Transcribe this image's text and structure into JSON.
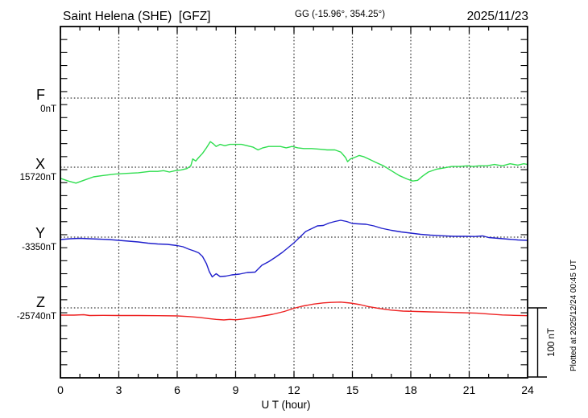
{
  "header": {
    "title": "Saint Helena (SHE)  [GFZ]",
    "coords": "GG (-15.96°, 354.25°)",
    "date": "2025/11/23"
  },
  "axis": {
    "xlabel": "U T (hour)",
    "x_ticks": [
      0,
      3,
      6,
      9,
      12,
      15,
      18,
      21,
      24
    ],
    "x_range": [
      0,
      24
    ]
  },
  "scale_bar": {
    "label": "100 nT",
    "span_nT": 100
  },
  "plotted_at": "Plotted at 2025/12/24 00:45 UT",
  "chart_data": {
    "type": "line",
    "title": "Saint Helena (SHE) [GFZ] magnetogram 2025/11/23",
    "xlabel": "U T (hour)",
    "x_range": [
      0,
      24
    ],
    "x_tick_step": 3,
    "grid": "dotted vertical lines every 3 h, dotted horizontal baseline per component",
    "legend_position": "left margin, one colored label per component",
    "y_units": "nT deviation from component baseline, 100 nT per division",
    "series": [
      {
        "name": "F",
        "baseline_label": "0nT",
        "color": "#FFA500",
        "points": []
      },
      {
        "name": "X",
        "baseline_label": "15720nT",
        "color": "#2FDE4F",
        "points": [
          [
            0,
            -16
          ],
          [
            0.4,
            -20
          ],
          [
            0.8,
            -23
          ],
          [
            1.2,
            -19
          ],
          [
            1.7,
            -14
          ],
          [
            2.2,
            -12
          ],
          [
            2.8,
            -10
          ],
          [
            3.4,
            -9
          ],
          [
            4,
            -8
          ],
          [
            4.6,
            -6
          ],
          [
            5,
            -6
          ],
          [
            5.3,
            -5
          ],
          [
            5.6,
            -7
          ],
          [
            5.9,
            -5
          ],
          [
            6.2,
            -4
          ],
          [
            6.5,
            -2
          ],
          [
            6.7,
            2
          ],
          [
            6.8,
            12
          ],
          [
            6.95,
            9
          ],
          [
            7.1,
            14
          ],
          [
            7.3,
            20
          ],
          [
            7.5,
            28
          ],
          [
            7.7,
            37
          ],
          [
            7.85,
            34
          ],
          [
            8,
            30
          ],
          [
            8.2,
            33
          ],
          [
            8.45,
            31
          ],
          [
            8.7,
            33
          ],
          [
            9,
            33
          ],
          [
            9.3,
            33
          ],
          [
            9.6,
            31
          ],
          [
            9.9,
            29
          ],
          [
            10.15,
            25
          ],
          [
            10.4,
            28
          ],
          [
            10.7,
            30
          ],
          [
            11,
            30
          ],
          [
            11.3,
            30
          ],
          [
            11.6,
            28
          ],
          [
            11.9,
            30
          ],
          [
            12.2,
            28
          ],
          [
            12.5,
            27
          ],
          [
            12.9,
            27
          ],
          [
            13.3,
            26
          ],
          [
            13.7,
            25
          ],
          [
            14.1,
            25
          ],
          [
            14.4,
            22
          ],
          [
            14.65,
            14
          ],
          [
            14.75,
            8
          ],
          [
            14.9,
            12
          ],
          [
            15.1,
            14
          ],
          [
            15.35,
            17
          ],
          [
            15.6,
            15
          ],
          [
            15.9,
            11
          ],
          [
            16.2,
            7
          ],
          [
            16.6,
            2
          ],
          [
            17,
            -5
          ],
          [
            17.4,
            -12
          ],
          [
            17.8,
            -17
          ],
          [
            18.1,
            -20
          ],
          [
            18.35,
            -19
          ],
          [
            18.6,
            -13
          ],
          [
            18.9,
            -7
          ],
          [
            19.3,
            -3
          ],
          [
            19.7,
            -1
          ],
          [
            20.1,
            1
          ],
          [
            20.5,
            1
          ],
          [
            20.9,
            2
          ],
          [
            21.2,
            1
          ],
          [
            21.5,
            2
          ],
          [
            21.9,
            2
          ],
          [
            22.3,
            4
          ],
          [
            22.7,
            2
          ],
          [
            23.1,
            5
          ],
          [
            23.5,
            3
          ],
          [
            23.8,
            5
          ],
          [
            24,
            4
          ]
        ]
      },
      {
        "name": "Y",
        "baseline_label": "-3350nT",
        "color": "#2020CC",
        "points": [
          [
            0,
            -3.5
          ],
          [
            0.5,
            -2.3
          ],
          [
            1,
            -1.7
          ],
          [
            1.5,
            -2.3
          ],
          [
            2,
            -2.9
          ],
          [
            2.5,
            -3.5
          ],
          [
            3,
            -4.7
          ],
          [
            3.5,
            -5.8
          ],
          [
            4,
            -7
          ],
          [
            4.5,
            -8.7
          ],
          [
            5,
            -9.9
          ],
          [
            5.5,
            -10.5
          ],
          [
            6,
            -12.2
          ],
          [
            6.3,
            -14
          ],
          [
            6.6,
            -17.4
          ],
          [
            6.9,
            -20.3
          ],
          [
            7.1,
            -22.7
          ],
          [
            7.3,
            -27.9
          ],
          [
            7.5,
            -38.4
          ],
          [
            7.65,
            -50
          ],
          [
            7.8,
            -57.6
          ],
          [
            8,
            -52.9
          ],
          [
            8.2,
            -57
          ],
          [
            8.5,
            -56.4
          ],
          [
            8.8,
            -54.7
          ],
          [
            9.2,
            -53.5
          ],
          [
            9.6,
            -51.2
          ],
          [
            10,
            -50.6
          ],
          [
            10.35,
            -40.7
          ],
          [
            10.7,
            -35.5
          ],
          [
            11.05,
            -29.1
          ],
          [
            11.4,
            -22.1
          ],
          [
            11.7,
            -15.1
          ],
          [
            12,
            -8.1
          ],
          [
            12.3,
            0
          ],
          [
            12.6,
            8.1
          ],
          [
            12.9,
            12.2
          ],
          [
            13.2,
            16.3
          ],
          [
            13.5,
            16.9
          ],
          [
            13.8,
            20.3
          ],
          [
            14.1,
            22.7
          ],
          [
            14.4,
            24.4
          ],
          [
            14.7,
            22.7
          ],
          [
            15,
            19.8
          ],
          [
            15.3,
            19.2
          ],
          [
            15.7,
            18.6
          ],
          [
            16.1,
            16.3
          ],
          [
            16.5,
            12.8
          ],
          [
            17,
            9.9
          ],
          [
            17.5,
            7.6
          ],
          [
            18,
            5.8
          ],
          [
            18.5,
            4.1
          ],
          [
            19,
            2.9
          ],
          [
            19.6,
            2
          ],
          [
            20.2,
            1.2
          ],
          [
            20.8,
            1.2
          ],
          [
            21.3,
            0.9
          ],
          [
            21.7,
            1.7
          ],
          [
            22,
            -0.6
          ],
          [
            22.5,
            -1.7
          ],
          [
            23,
            -2.9
          ],
          [
            23.5,
            -4.1
          ],
          [
            24,
            -4.7
          ]
        ]
      },
      {
        "name": "Z",
        "baseline_label": "-25740nT",
        "color": "#EE2222",
        "points": [
          [
            0,
            -10.5
          ],
          [
            0.7,
            -10.5
          ],
          [
            1.2,
            -9.9
          ],
          [
            1.5,
            -11
          ],
          [
            2.2,
            -10.8
          ],
          [
            3,
            -11
          ],
          [
            4,
            -11
          ],
          [
            5,
            -11.3
          ],
          [
            6,
            -11.6
          ],
          [
            6.6,
            -12.6
          ],
          [
            7.1,
            -13.7
          ],
          [
            7.6,
            -15.5
          ],
          [
            8,
            -16.6
          ],
          [
            8.4,
            -17.4
          ],
          [
            8.7,
            -16.6
          ],
          [
            9,
            -17.2
          ],
          [
            9.4,
            -16
          ],
          [
            9.8,
            -14.5
          ],
          [
            10.3,
            -12.2
          ],
          [
            10.9,
            -9.3
          ],
          [
            11.5,
            -5.2
          ],
          [
            12,
            -0.6
          ],
          [
            12.4,
            2.3
          ],
          [
            13,
            5.5
          ],
          [
            13.5,
            7.2
          ],
          [
            13.9,
            7.9
          ],
          [
            14.4,
            8.4
          ],
          [
            14.9,
            7
          ],
          [
            15.4,
            4.7
          ],
          [
            15.8,
            2
          ],
          [
            16.4,
            -0.9
          ],
          [
            17,
            -3.3
          ],
          [
            17.6,
            -4.7
          ],
          [
            18.3,
            -5.2
          ],
          [
            19,
            -5.8
          ],
          [
            19.8,
            -6.3
          ],
          [
            20.6,
            -7
          ],
          [
            21.4,
            -7.7
          ],
          [
            22.1,
            -9.1
          ],
          [
            22.7,
            -10.2
          ],
          [
            23.3,
            -10.8
          ],
          [
            24,
            -11.3
          ]
        ]
      }
    ]
  }
}
